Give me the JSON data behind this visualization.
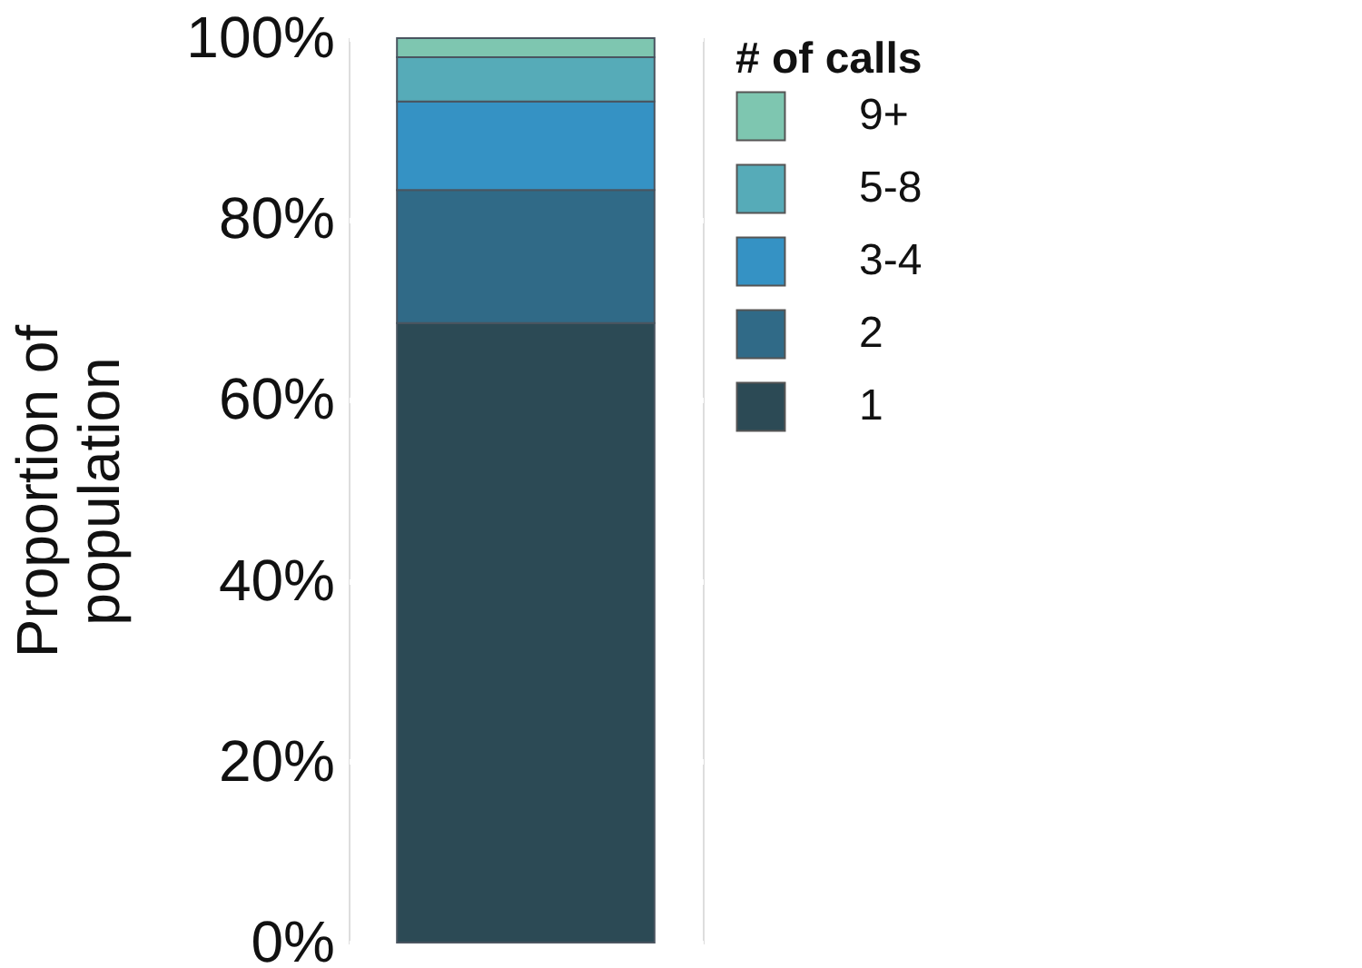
{
  "chart_data": {
    "type": "bar",
    "stacked": true,
    "categories": [
      null
    ],
    "ylabel": "Proportion of\npopulation",
    "legend_title": "# of calls",
    "series": [
      {
        "name": "1",
        "color": "#2c4a55",
        "values": [
          68.5
        ]
      },
      {
        "name": "2",
        "color": "#306a87",
        "values": [
          14.7
        ]
      },
      {
        "name": "3-4",
        "color": "#3592c4",
        "values": [
          9.8
        ]
      },
      {
        "name": "5-8",
        "color": "#56abb8",
        "values": [
          4.9
        ]
      },
      {
        "name": "9+",
        "color": "#7ec6b0",
        "values": [
          2.1
        ]
      }
    ],
    "ylim": [
      0,
      100
    ],
    "yticks": [
      {
        "value": 0,
        "label": "0%"
      },
      {
        "value": 20,
        "label": "20%"
      },
      {
        "value": 40,
        "label": "40%"
      },
      {
        "value": 60,
        "label": "60%"
      },
      {
        "value": 80,
        "label": "80%"
      },
      {
        "value": 100,
        "label": "100%"
      }
    ],
    "grid": "y",
    "legend": "right",
    "tick_labels": "y"
  }
}
